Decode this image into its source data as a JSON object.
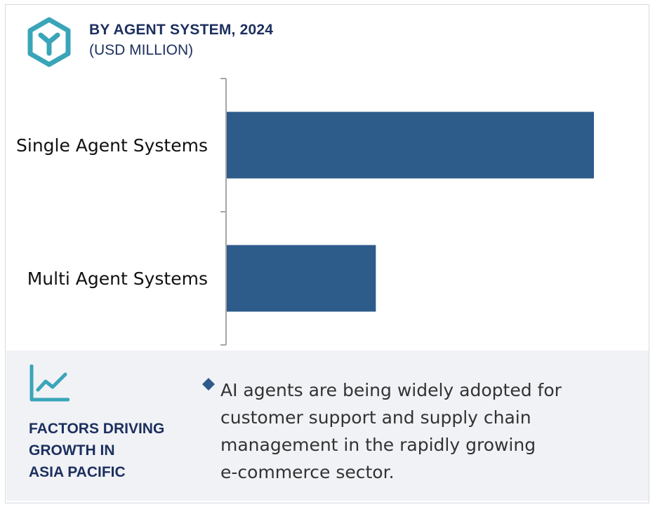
{
  "header": {
    "title": "BY AGENT SYSTEM, 2024",
    "subtitle": "(USD MILLION)",
    "icon": "hexagon-y-logo-icon"
  },
  "chart_data": {
    "type": "bar",
    "orientation": "horizontal",
    "categories": [
      "Single Agent Systems",
      "Multi Agent Systems"
    ],
    "values": [
      100,
      40.6
    ],
    "value_note_scale": "relative",
    "title": "BY AGENT SYSTEM, 2024",
    "subtitle": "(USD MILLION)",
    "xlabel": "",
    "ylabel": "",
    "xlim": [
      0,
      100
    ],
    "grid": false,
    "legend": "none",
    "bar_color": "#2d5b8a",
    "axis_color": "#a6a6a6"
  },
  "factors": {
    "icon": "line-chart-icon",
    "heading_lines": [
      "FACTORS DRIVING",
      "GROWTH IN",
      "ASIA PACIFIC"
    ],
    "bullet_icon": "diamond-bullet-icon",
    "text_lines": [
      "AI agents are being widely adopted for",
      "customer support and supply chain",
      "management in the rapidly growing",
      "e-commerce sector."
    ]
  },
  "colors": {
    "brand_teal": "#3aa5b8",
    "heading_navy": "#1c2f5e",
    "bar": "#2d5b8a",
    "panel_bg": "#f1f2f6",
    "bullet": "#2d5b8a"
  }
}
